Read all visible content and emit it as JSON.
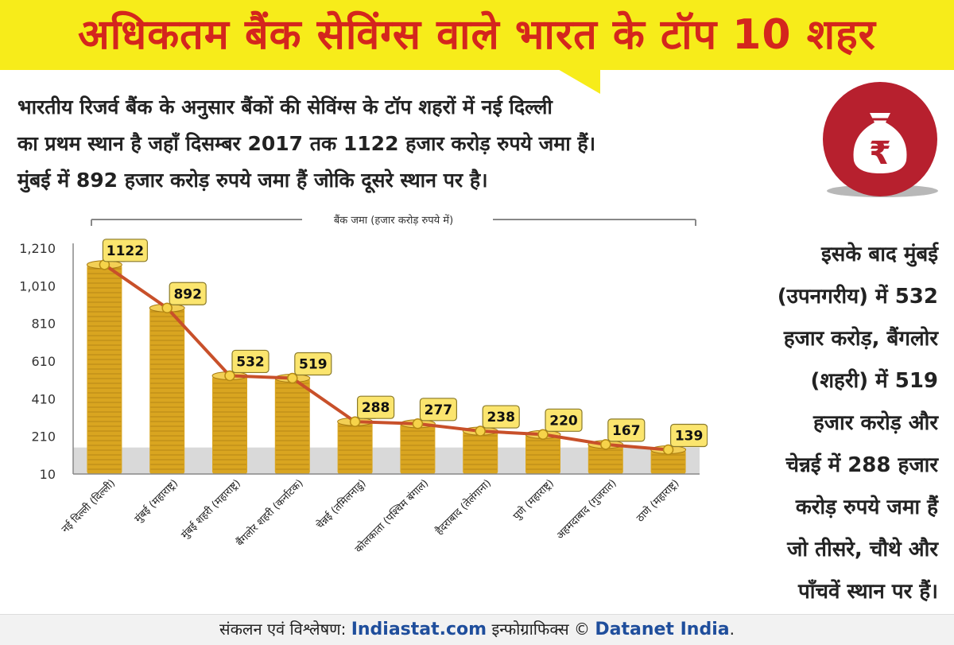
{
  "title": "अधिकतम बैंक सेविंग्स वाले भारत के टॉप 10 शहर",
  "intro_lines": [
    "भारतीय रिजर्व बैंक के अनुसार बैंकों की सेविंग्स के टॉप शहरों में नई दिल्ली",
    "का प्रथम स्थान है जहाँ दिसम्बर 2017 तक 1122 हजार करोड़ रुपये जमा हैं।",
    "मुंबई में 892 हजार करोड़ रुपये जमा हैं जोकि दूसरे स्थान पर है।"
  ],
  "badge": {
    "icon": "money-bag-rupee-icon",
    "symbol": "₹",
    "color": "#b7202e"
  },
  "side_lines": [
    "इसके बाद मुंबई",
    "(उपनगरीय) में 532",
    "हजार करोड़, बैंगलोर",
    "(शहरी) में 519",
    "हजार करोड़ और",
    "चेन्नई में 288 हजार",
    "करोड़ रुपये जमा हैं",
    "जो तीसरे, चौथे और",
    "पाँचवें स्थान पर हैं।"
  ],
  "footer": {
    "prefix": "संकलन एवं विश्लेषण:",
    "brand1": "Indiastat.com",
    "middle": "इन्फोग्राफिक्स ©",
    "brand2": "Datanet India",
    "suffix": "."
  },
  "chart_data": {
    "type": "bar",
    "title": "बैंक जमा (हजार करोड़ रुपये में)",
    "categories": [
      "नई दिल्ली (दिल्ली)",
      "मुंबई (महाराष्ट्र)",
      "मुंबई शहरी (महाराष्ट्र)",
      "बैंगलोर शहरी (कर्नाटक)",
      "चेन्नई (तमिलनाडु)",
      "कोलकाता (पश्चिम बंगाल)",
      "हैदराबाद (तेलंगाना)",
      "पुणे (महाराष्ट्र)",
      "अहमदाबाद (गुजरात)",
      "ठाणे (महाराष्ट्र)"
    ],
    "values": [
      1122,
      892,
      532,
      519,
      288,
      277,
      238,
      220,
      167,
      139
    ],
    "yticks": [
      "1,210",
      "1,010",
      "810",
      "610",
      "410",
      "210",
      "10"
    ],
    "ytick_values": [
      1210,
      1010,
      810,
      610,
      410,
      210,
      10
    ],
    "ylim": [
      10,
      1210
    ],
    "colors": {
      "coin": "#d9a520",
      "line": "#c8502a",
      "label_fill": "#fbe56e"
    }
  }
}
